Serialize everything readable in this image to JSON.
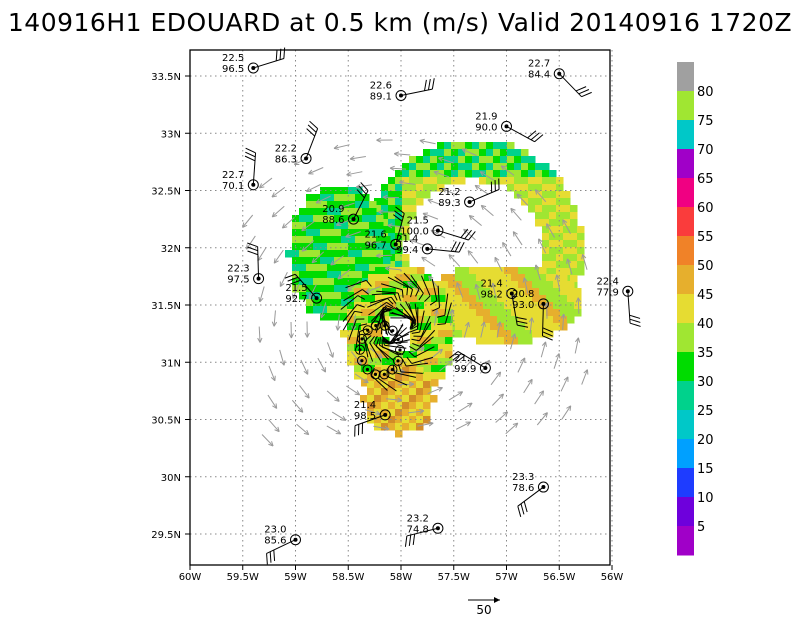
{
  "title": "140916H1 EDOUARD at 0.5 km (m/s) Valid 20140916 1720Z",
  "axes": {
    "x_ticks": [
      "60W",
      "59.5W",
      "59W",
      "58.5W",
      "58W",
      "57.5W",
      "57W",
      "56.5W",
      "56W"
    ],
    "y_ticks": [
      "29.5N",
      "30N",
      "30.5N",
      "31N",
      "31.5N",
      "32N",
      "32.5N",
      "33N",
      "33.5N"
    ]
  },
  "colorbar": {
    "labels": [
      "5",
      "10",
      "15",
      "20",
      "25",
      "30",
      "35",
      "40",
      "45",
      "50",
      "55",
      "60",
      "65",
      "70",
      "75",
      "80"
    ],
    "colors": [
      "#a000c8",
      "#6e00dc",
      "#1e3cff",
      "#00a0ff",
      "#00c8c8",
      "#00d28c",
      "#00dc00",
      "#a0e632",
      "#e6dc32",
      "#e6af2d",
      "#f08228",
      "#fa3c3c",
      "#f00082",
      "#a000c8",
      "#00c8c8",
      "#a0e632",
      "#a0a0a0"
    ]
  },
  "reference_vector": {
    "label": "50"
  },
  "stations": [
    {
      "speed": "22.5",
      "dir": "96.5",
      "lon": -59.4,
      "lat": 33.57
    },
    {
      "speed": "22.6",
      "dir": "89.1",
      "lon": -58.0,
      "lat": 33.33
    },
    {
      "speed": "22.7",
      "dir": "84.4",
      "lon": -56.5,
      "lat": 33.52
    },
    {
      "speed": "22.2",
      "dir": "86.3",
      "lon": -58.9,
      "lat": 32.78
    },
    {
      "speed": "21.9",
      "dir": "90.0",
      "lon": -57.0,
      "lat": 33.06
    },
    {
      "speed": "22.7",
      "dir": "70.1",
      "lon": -59.4,
      "lat": 32.55
    },
    {
      "speed": "21.2",
      "dir": "89.3",
      "lon": -57.35,
      "lat": 32.4
    },
    {
      "speed": "20.9",
      "dir": "88.6",
      "lon": -58.45,
      "lat": 32.25
    },
    {
      "speed": "21.5",
      "dir": "100.0",
      "lon": -57.65,
      "lat": 32.15
    },
    {
      "speed": "21.6",
      "dir": "96.7",
      "lon": -58.05,
      "lat": 32.03
    },
    {
      "speed": "21.4",
      "dir": "99.4",
      "lon": -57.75,
      "lat": 31.99
    },
    {
      "speed": "22.3",
      "dir": "97.5",
      "lon": -59.35,
      "lat": 31.73
    },
    {
      "speed": "21.5",
      "dir": "92.7",
      "lon": -58.8,
      "lat": 31.56
    },
    {
      "speed": "21.4",
      "dir": "98.2",
      "lon": -56.95,
      "lat": 31.6
    },
    {
      "speed": "20.8",
      "dir": "93.0",
      "lon": -56.65,
      "lat": 31.51
    },
    {
      "speed": "22.4",
      "dir": "77.9",
      "lon": -55.85,
      "lat": 31.62
    },
    {
      "speed": "21.6",
      "dir": "99.9",
      "lon": -57.2,
      "lat": 30.95
    },
    {
      "speed": "21.4",
      "dir": "98.5",
      "lon": -58.15,
      "lat": 30.54
    },
    {
      "speed": "23.3",
      "dir": "78.6",
      "lon": -56.65,
      "lat": 29.91
    },
    {
      "speed": "23.2",
      "dir": "74.8",
      "lon": -57.65,
      "lat": 29.55
    },
    {
      "speed": "23.0",
      "dir": "85.6",
      "lon": -59.0,
      "lat": 29.45
    }
  ]
}
